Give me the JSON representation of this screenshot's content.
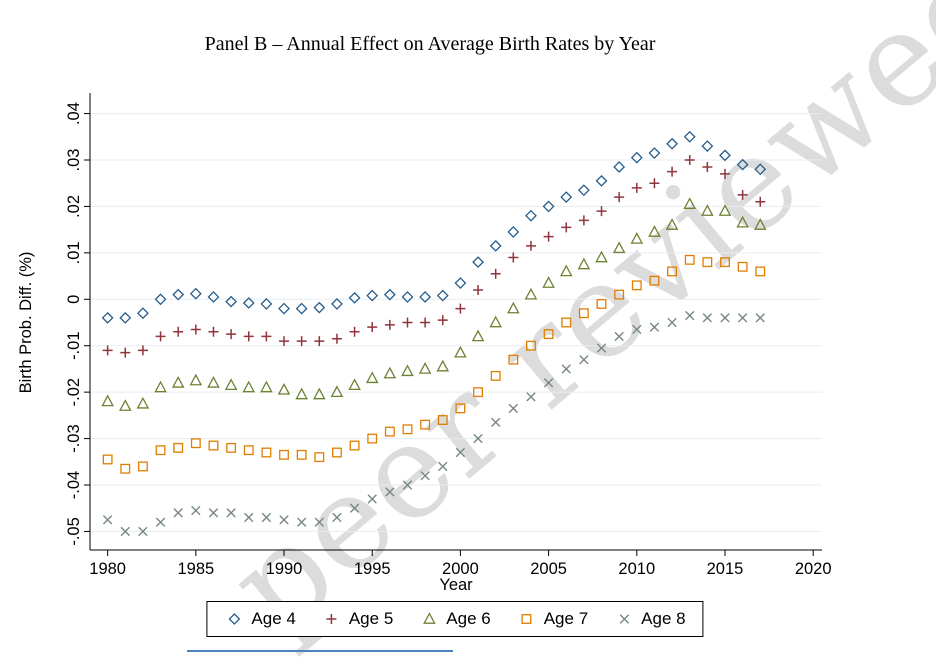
{
  "watermark": {
    "text": "peer reviewed",
    "color": "#dcdcdc",
    "angle_deg": -40
  },
  "accents": {
    "blue_line": "#4f81bd",
    "grid": "#e7edf3",
    "axis": "#000000"
  },
  "chart_data": {
    "type": "scatter",
    "title": "Panel B – Annual Effect on Average Birth Rates by Year",
    "xlabel": "Year",
    "ylabel": "Birth Prob. Diff. (%)",
    "legend_position": "bottom",
    "grid": "horizontal",
    "xlim": [
      1979,
      2020.5
    ],
    "ylim": [
      -0.054,
      0.044
    ],
    "x_ticks": [
      1980,
      1985,
      1990,
      1995,
      2000,
      2005,
      2010,
      2015,
      2020
    ],
    "y_ticks": [
      0.04,
      0.03,
      0.02,
      0.01,
      0,
      -0.01,
      -0.02,
      -0.03,
      -0.04,
      -0.05
    ],
    "y_tick_labels": [
      ".04",
      ".03",
      ".02",
      ".01",
      "0",
      "-.01",
      "-.02",
      "-.03",
      "-.04",
      "-.05"
    ],
    "x": [
      1980,
      1981,
      1982,
      1983,
      1984,
      1985,
      1986,
      1987,
      1988,
      1989,
      1990,
      1991,
      1992,
      1993,
      1994,
      1995,
      1996,
      1997,
      1998,
      1999,
      2000,
      2001,
      2002,
      2003,
      2004,
      2005,
      2006,
      2007,
      2008,
      2009,
      2010,
      2011,
      2012,
      2013,
      2014,
      2015,
      2016,
      2017
    ],
    "series": [
      {
        "name": "Age 4",
        "marker": "diamond",
        "color": "#275d8b",
        "values": [
          -0.004,
          -0.004,
          -0.003,
          0.0,
          0.001,
          0.0012,
          0.0005,
          -0.0005,
          -0.0008,
          -0.001,
          -0.002,
          -0.002,
          -0.0018,
          -0.001,
          0.0003,
          0.0008,
          0.001,
          0.0005,
          0.0005,
          0.0008,
          0.0035,
          0.008,
          0.0115,
          0.0145,
          0.018,
          0.02,
          0.022,
          0.0235,
          0.0255,
          0.0285,
          0.0305,
          0.0315,
          0.0335,
          0.035,
          0.033,
          0.031,
          0.029,
          0.028
        ]
      },
      {
        "name": "Age 5",
        "marker": "plus",
        "color": "#90353b",
        "values": [
          -0.011,
          -0.0115,
          -0.011,
          -0.008,
          -0.007,
          -0.0065,
          -0.007,
          -0.0075,
          -0.008,
          -0.008,
          -0.009,
          -0.009,
          -0.009,
          -0.0085,
          -0.007,
          -0.006,
          -0.0055,
          -0.005,
          -0.005,
          -0.0045,
          -0.002,
          0.002,
          0.0055,
          0.009,
          0.0115,
          0.0135,
          0.0155,
          0.017,
          0.019,
          0.022,
          0.024,
          0.025,
          0.0275,
          0.03,
          0.0285,
          0.027,
          0.0225,
          0.021
        ]
      },
      {
        "name": "Age 6",
        "marker": "triangle",
        "color": "#6d8132",
        "values": [
          -0.022,
          -0.023,
          -0.0225,
          -0.019,
          -0.018,
          -0.0175,
          -0.018,
          -0.0185,
          -0.019,
          -0.019,
          -0.0195,
          -0.0205,
          -0.0205,
          -0.02,
          -0.0185,
          -0.017,
          -0.016,
          -0.0155,
          -0.015,
          -0.0145,
          -0.0115,
          -0.008,
          -0.005,
          -0.002,
          0.001,
          0.0035,
          0.006,
          0.0075,
          0.009,
          0.011,
          0.013,
          0.0145,
          0.016,
          0.0205,
          0.019,
          0.019,
          0.0165,
          0.016
        ]
      },
      {
        "name": "Age 7",
        "marker": "square",
        "color": "#e07d00",
        "values": [
          -0.0345,
          -0.0365,
          -0.036,
          -0.0325,
          -0.032,
          -0.031,
          -0.0315,
          -0.032,
          -0.0325,
          -0.033,
          -0.0335,
          -0.0335,
          -0.034,
          -0.033,
          -0.0315,
          -0.03,
          -0.0285,
          -0.028,
          -0.027,
          -0.026,
          -0.0235,
          -0.02,
          -0.0165,
          -0.013,
          -0.01,
          -0.0075,
          -0.005,
          -0.003,
          -0.001,
          0.001,
          0.003,
          0.004,
          0.006,
          0.0085,
          0.008,
          0.008,
          0.007,
          0.006
        ]
      },
      {
        "name": "Age 8",
        "marker": "x",
        "color": "#77897f",
        "values": [
          -0.0475,
          -0.05,
          -0.05,
          -0.048,
          -0.046,
          -0.0455,
          -0.046,
          -0.046,
          -0.047,
          -0.047,
          -0.0475,
          -0.048,
          -0.048,
          -0.047,
          -0.045,
          -0.043,
          -0.0415,
          -0.04,
          -0.038,
          -0.036,
          -0.033,
          -0.03,
          -0.0265,
          -0.0235,
          -0.021,
          -0.018,
          -0.015,
          -0.013,
          -0.0105,
          -0.008,
          -0.0065,
          -0.006,
          -0.005,
          -0.0035,
          -0.004,
          -0.004,
          -0.004,
          -0.004
        ]
      }
    ]
  }
}
